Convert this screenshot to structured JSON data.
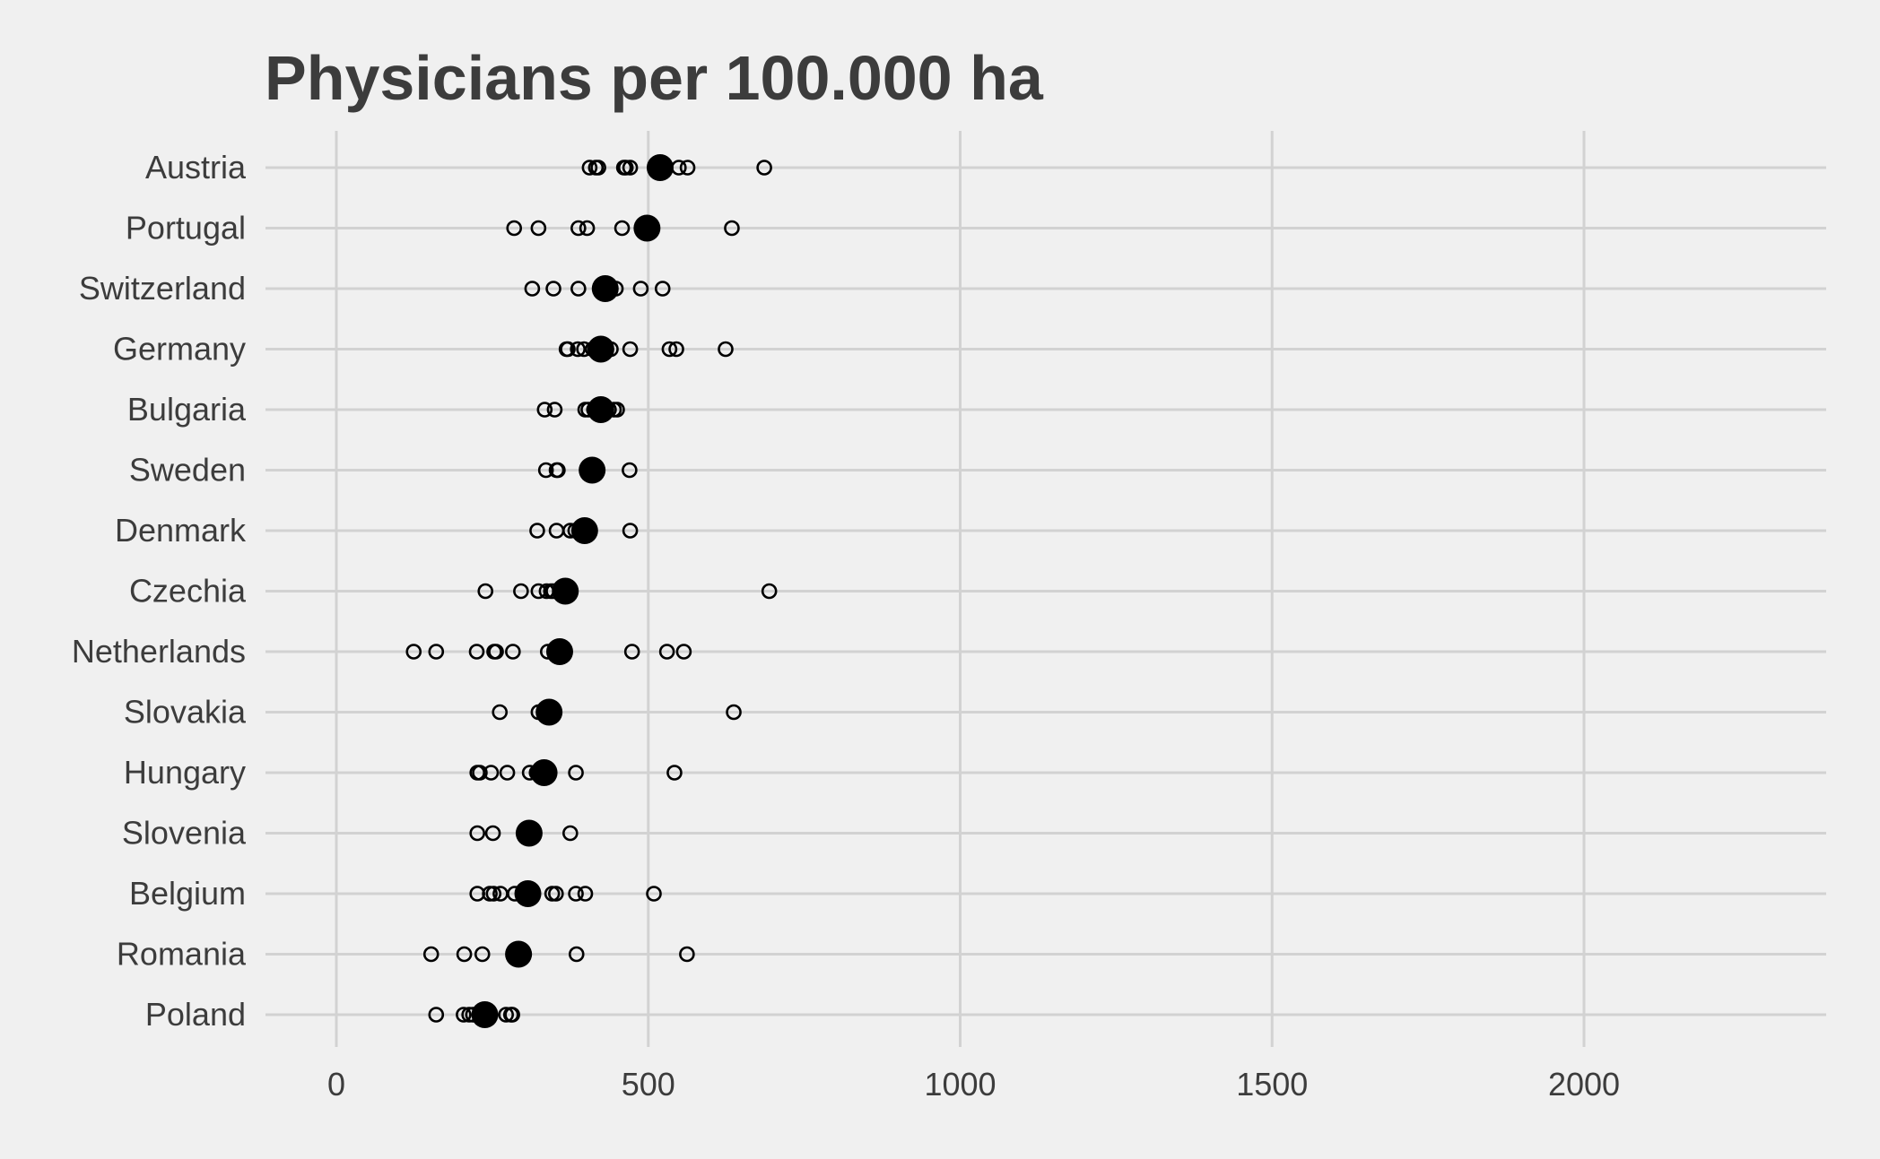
{
  "chart_data": {
    "type": "scatter",
    "title": "Physicians per 100.000 ha",
    "xlabel": "",
    "ylabel": "",
    "xlim": [
      -100,
      2100
    ],
    "x_ticks": [
      0,
      500,
      1000,
      1500,
      2000
    ],
    "x_tick_labels": [
      "0",
      "500",
      "1000",
      "1500",
      "2000"
    ],
    "grid": true,
    "legend": "none",
    "colors": {
      "background": "#f0f0f0",
      "grid": "#d2d2d2",
      "points": "#000000",
      "text": "#3c3c3c"
    },
    "categories": [
      "Austria",
      "Portugal",
      "Switzerland",
      "Germany",
      "Bulgaria",
      "Sweden",
      "Denmark",
      "Czechia",
      "Netherlands",
      "Slovakia",
      "Hungary",
      "Slovenia",
      "Belgium",
      "Romania",
      "Poland"
    ],
    "series": [
      {
        "marker": "open-circle",
        "points": [
          {
            "country": "Austria",
            "values": [
              406,
              416,
              420,
              461,
              464,
              471,
              549,
              563,
              686
            ]
          },
          {
            "country": "Portugal",
            "values": [
              285,
              324,
              388,
              402,
              458,
              634
            ]
          },
          {
            "country": "Switzerland",
            "values": [
              314,
              348,
              388,
              448,
              488,
              523
            ]
          },
          {
            "country": "Germany",
            "values": [
              369,
              371,
              387,
              397,
              411,
              440,
              471,
              534,
              545,
              624
            ]
          },
          {
            "country": "Bulgaria",
            "values": [
              334,
              350,
              399,
              404,
              413,
              437,
              445,
              450
            ]
          },
          {
            "country": "Sweden",
            "values": [
              336,
              353,
              355,
              470
            ]
          },
          {
            "country": "Denmark",
            "values": [
              322,
              353,
              375,
              383,
              471
            ]
          },
          {
            "country": "Czechia",
            "values": [
              239,
              296,
              324,
              337,
              344,
              348,
              694
            ]
          },
          {
            "country": "Netherlands",
            "values": [
              124,
              160,
              225,
              253,
              256,
              283,
              339,
              474,
              530,
              557
            ]
          },
          {
            "country": "Slovakia",
            "values": [
              262,
              324,
              637
            ]
          },
          {
            "country": "Hungary",
            "values": [
              226,
              230,
              248,
              274,
              310,
              321,
              384,
              542
            ]
          },
          {
            "country": "Slovenia",
            "values": [
              226,
              251,
              375
            ]
          },
          {
            "country": "Belgium",
            "values": [
              226,
              246,
              252,
              263,
              286,
              346,
              352,
              384,
              399,
              509
            ]
          },
          {
            "country": "Romania",
            "values": [
              152,
              205,
              234,
              301,
              385,
              562
            ]
          },
          {
            "country": "Poland",
            "values": [
              160,
              204,
              213,
              219,
              244,
              272,
              280,
              282
            ]
          }
        ]
      },
      {
        "marker": "filled-circle",
        "points": [
          {
            "country": "Austria",
            "values": [
              519
            ]
          },
          {
            "country": "Portugal",
            "values": [
              498
            ]
          },
          {
            "country": "Switzerland",
            "values": [
              431
            ]
          },
          {
            "country": "Germany",
            "values": [
              424
            ]
          },
          {
            "country": "Bulgaria",
            "values": [
              424
            ]
          },
          {
            "country": "Sweden",
            "values": [
              410
            ]
          },
          {
            "country": "Denmark",
            "values": [
              398
            ]
          },
          {
            "country": "Czechia",
            "values": [
              367
            ]
          },
          {
            "country": "Netherlands",
            "values": [
              358
            ]
          },
          {
            "country": "Slovakia",
            "values": [
              341
            ]
          },
          {
            "country": "Hungary",
            "values": [
              333
            ]
          },
          {
            "country": "Slovenia",
            "values": [
              309
            ]
          },
          {
            "country": "Belgium",
            "values": [
              307
            ]
          },
          {
            "country": "Romania",
            "values": [
              292
            ]
          },
          {
            "country": "Poland",
            "values": [
              238
            ]
          }
        ]
      }
    ]
  }
}
